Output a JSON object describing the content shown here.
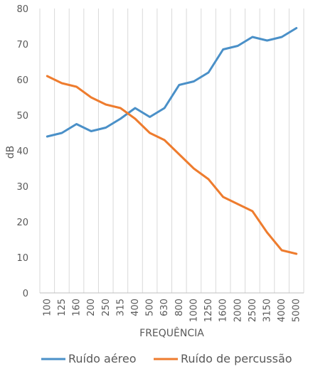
{
  "chart_data": {
    "type": "line",
    "title": "",
    "xlabel": "FREQUÊNCIA",
    "ylabel": "dB",
    "ylim": [
      0,
      80
    ],
    "yticks": [
      0,
      10,
      20,
      30,
      40,
      50,
      60,
      70,
      80
    ],
    "grid": {
      "vertical": true,
      "horizontal": false
    },
    "legend_position": "bottom",
    "categories": [
      "100",
      "125",
      "160",
      "200",
      "250",
      "315",
      "400",
      "500",
      "630",
      "800",
      "1000",
      "1250",
      "1600",
      "2000",
      "2500",
      "3150",
      "4000",
      "5000"
    ],
    "series": [
      {
        "name": "Ruído aéreo",
        "color": "#4a90c8",
        "values": [
          44,
          45,
          47.5,
          45.5,
          46.5,
          49,
          52,
          49.5,
          52,
          58.5,
          59.5,
          62,
          68.5,
          69.5,
          72,
          71,
          72,
          74.5
        ]
      },
      {
        "name": "Ruído de percussão",
        "color": "#ee7c2e",
        "values": [
          61,
          59,
          58,
          55,
          53,
          52,
          49,
          45,
          43,
          39,
          35,
          32,
          27,
          25,
          23,
          17,
          12,
          11
        ]
      }
    ]
  }
}
